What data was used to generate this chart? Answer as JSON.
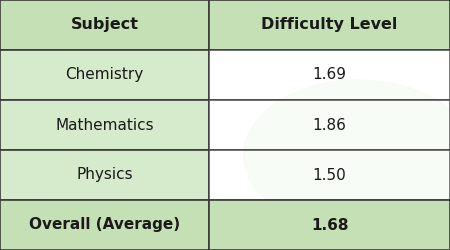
{
  "col_headers": [
    "Subject",
    "Difficulty Level"
  ],
  "rows": [
    [
      "Chemistry",
      "1.69"
    ],
    [
      "Mathematics",
      "1.86"
    ],
    [
      "Physics",
      "1.50"
    ],
    [
      "Overall (Average)",
      "1.68"
    ]
  ],
  "header_bg": "#c5e0b4",
  "row_bg_left": "#d6eacc",
  "row_bg_right": "#ffffff",
  "footer_bg": "#c5e0b4",
  "border_color": "#3a3a3a",
  "header_fontsize": 11.5,
  "row_fontsize": 11,
  "text_color": "#1a1a1a",
  "watermark_color": "#c8e6b8",
  "col_split": 0.465,
  "fig_width": 4.5,
  "fig_height": 2.5
}
